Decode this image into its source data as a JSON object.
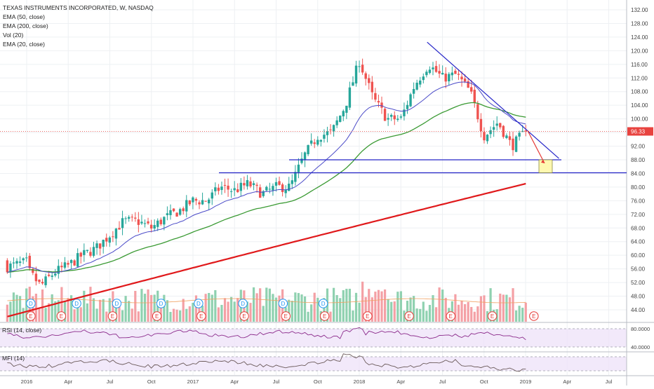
{
  "header": {
    "title": "TEXAS INSTRUMENTS INCORPORATED, W, NASDAQ",
    "studies": [
      "EMA (50, close)",
      "EMA (200, close)",
      "Vol (20)",
      "EMA (20, close)"
    ]
  },
  "rsi": {
    "label": "RSI (14, close)",
    "upper": "80.0000",
    "lower": "40.0000"
  },
  "mfi": {
    "label": "MFI (14)"
  },
  "price_badge": "96.33",
  "colors": {
    "up": "#26a69a",
    "down": "#ef5350",
    "ema20": "#4b4bc8",
    "ema50": "#3a9a33",
    "ema200": "#e0191b",
    "trend": "#2626c8",
    "rsi": "#8b2a8b",
    "band": "#ede2f8",
    "volup": "#8fd1b0",
    "voldown": "#f4a0a5",
    "badge": "#e8433f"
  },
  "chart_data": {
    "type": "candlestick",
    "title": "TEXAS INSTRUMENTS INCORPORATED, W, NASDAQ",
    "x_ticks": [
      "2016",
      "Apr",
      "Jul",
      "Oct",
      "2017",
      "Apr",
      "Jul",
      "Oct",
      "2018",
      "Apr",
      "Jul",
      "Oct",
      "2019",
      "Apr",
      "Jul"
    ],
    "y_ticks": [
      "132.00",
      "128.00",
      "124.00",
      "120.00",
      "116.00",
      "112.00",
      "108.00",
      "104.00",
      "100.00",
      "96.00",
      "92.00",
      "88.00",
      "84.00",
      "80.00",
      "76.00",
      "72.00",
      "68.00",
      "64.00",
      "60.00",
      "56.00",
      "52.00",
      "48.00",
      "44.00"
    ],
    "ylim": [
      41,
      134
    ],
    "last_close": 96.33,
    "price_series": [
      {
        "date": "2016-01",
        "close": 56
      },
      {
        "date": "2016-02",
        "close": 51
      },
      {
        "date": "2016-03",
        "close": 55
      },
      {
        "date": "2016-04",
        "close": 57
      },
      {
        "date": "2016-05",
        "close": 60
      },
      {
        "date": "2016-06",
        "close": 62
      },
      {
        "date": "2016-07",
        "close": 66
      },
      {
        "date": "2016-08",
        "close": 70
      },
      {
        "date": "2016-09",
        "close": 70
      },
      {
        "date": "2016-10",
        "close": 68
      },
      {
        "date": "2016-11",
        "close": 71
      },
      {
        "date": "2016-12",
        "close": 73
      },
      {
        "date": "2017-01",
        "close": 76
      },
      {
        "date": "2017-02",
        "close": 76
      },
      {
        "date": "2017-03",
        "close": 80
      },
      {
        "date": "2017-04",
        "close": 79
      },
      {
        "date": "2017-05",
        "close": 81
      },
      {
        "date": "2017-06",
        "close": 78
      },
      {
        "date": "2017-07",
        "close": 80
      },
      {
        "date": "2017-08",
        "close": 80
      },
      {
        "date": "2017-09",
        "close": 89
      },
      {
        "date": "2017-10",
        "close": 95
      },
      {
        "date": "2017-11",
        "close": 96
      },
      {
        "date": "2017-12",
        "close": 104
      },
      {
        "date": "2018-01",
        "close": 117
      },
      {
        "date": "2018-02",
        "close": 106
      },
      {
        "date": "2018-03",
        "close": 100
      },
      {
        "date": "2018-04",
        "close": 100
      },
      {
        "date": "2018-05",
        "close": 110
      },
      {
        "date": "2018-06",
        "close": 116
      },
      {
        "date": "2018-07",
        "close": 112
      },
      {
        "date": "2018-08",
        "close": 113
      },
      {
        "date": "2018-09",
        "close": 108
      },
      {
        "date": "2018-10",
        "close": 95
      },
      {
        "date": "2018-11",
        "close": 99
      },
      {
        "date": "2018-12",
        "close": 92
      },
      {
        "date": "2019-01",
        "close": 96.33
      }
    ],
    "overlays": [
      {
        "name": "EMA (20, close)",
        "end": 97
      },
      {
        "name": "EMA (50, close)",
        "end": 100.5
      },
      {
        "name": "EMA (200, close)",
        "end": 82.5
      }
    ],
    "annotations": {
      "resistance_trendline": [
        {
          "date": "2018-06",
          "price": 122.5
        },
        {
          "date": "2019-03",
          "price": 88.4
        }
      ],
      "support_lines": [
        88.0,
        84.2
      ],
      "target_box": [
        84.2,
        88.0
      ]
    },
    "rsi_range": [
      40,
      80
    ],
    "grid": true,
    "legend": "top-left"
  }
}
